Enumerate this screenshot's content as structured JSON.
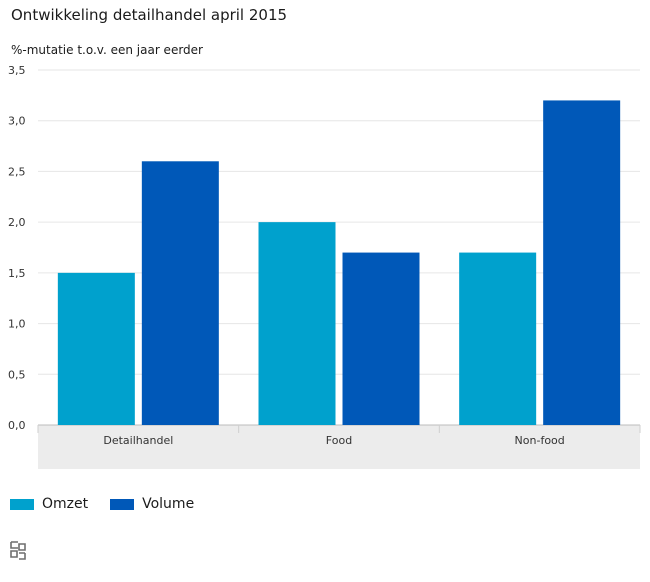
{
  "title": "Ontwikkeling detailhandel april 2015",
  "subtitle": "%-mutatie t.o.v. een jaar eerder",
  "colors": {
    "omzet": "#00a1cd",
    "volume": "#0058b8",
    "axis_band": "#ececec",
    "grid": "#e6e6e6"
  },
  "chart_data": {
    "type": "bar",
    "categories": [
      "Detailhandel",
      "Food",
      "Non-food"
    ],
    "series": [
      {
        "name": "Omzet",
        "values": [
          1.5,
          2.0,
          1.7
        ]
      },
      {
        "name": "Volume",
        "values": [
          2.6,
          1.7,
          3.2
        ]
      }
    ],
    "yticks": [
      "0,0",
      "0,5",
      "1,0",
      "1,5",
      "2,0",
      "2,5",
      "3,0",
      "3,5"
    ],
    "ylim": [
      0,
      3.5
    ],
    "grid": true,
    "legend": "bottom-left"
  },
  "logo_icon": "cbs-logo-icon"
}
